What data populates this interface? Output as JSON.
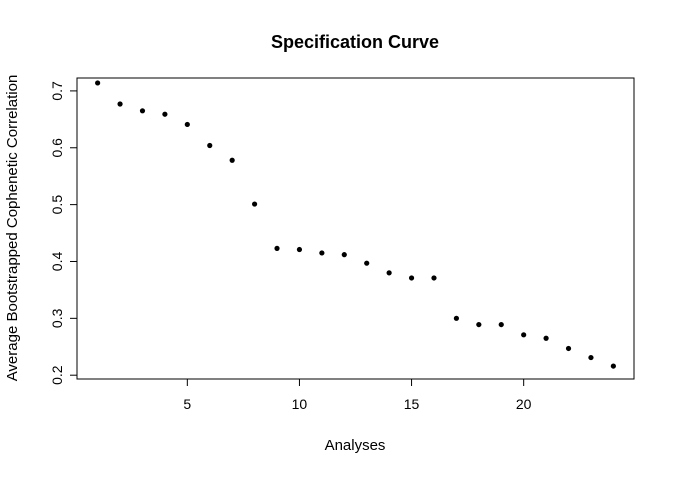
{
  "chart_data": {
    "type": "scatter",
    "title": "Specification Curve",
    "xlabel": "Analyses",
    "ylabel": "Average Bootstrapped Cophenetic Correlation",
    "xlim": [
      0.08,
      24.92
    ],
    "ylim": [
      0.1933,
      0.7227
    ],
    "xticks": [
      5,
      10,
      15,
      20
    ],
    "yticks": [
      0.2,
      0.3,
      0.4,
      0.5,
      0.6,
      0.7
    ],
    "x": [
      1,
      2,
      3,
      4,
      5,
      6,
      7,
      8,
      9,
      10,
      11,
      12,
      13,
      14,
      15,
      16,
      17,
      18,
      19,
      20,
      21,
      22,
      23,
      24
    ],
    "y": [
      0.714,
      0.677,
      0.665,
      0.659,
      0.641,
      0.604,
      0.578,
      0.501,
      0.423,
      0.421,
      0.415,
      0.412,
      0.397,
      0.38,
      0.371,
      0.371,
      0.3,
      0.289,
      0.289,
      0.271,
      0.265,
      0.247,
      0.231,
      0.216
    ],
    "marker": "filled-circle",
    "point_color": "#000000",
    "grid": false,
    "legend": "none"
  }
}
